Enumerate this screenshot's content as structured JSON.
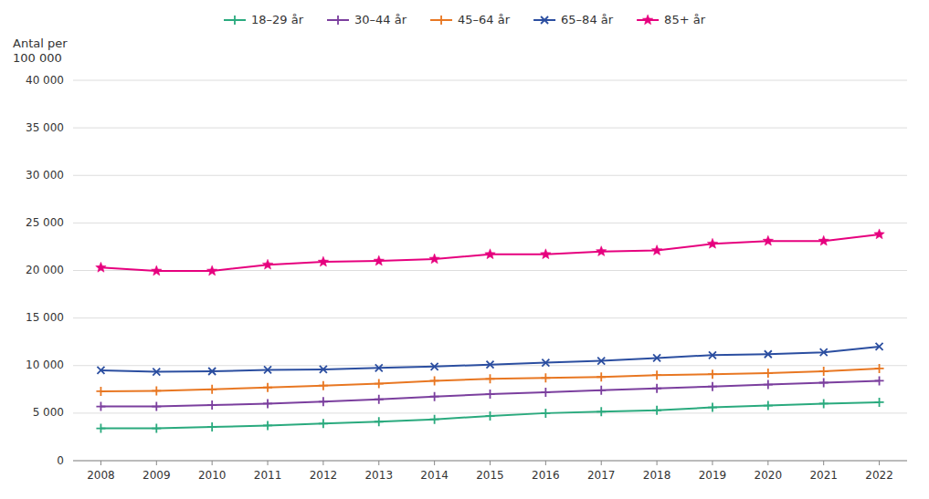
{
  "chart_data": {
    "type": "line",
    "y_label": "Antal per\n100 000",
    "x": [
      2008,
      2009,
      2010,
      2011,
      2012,
      2013,
      2014,
      2015,
      2016,
      2017,
      2018,
      2019,
      2020,
      2021,
      2022
    ],
    "xlim": [
      2007.5,
      2022.5
    ],
    "xticks": [
      2008,
      2009,
      2010,
      2011,
      2012,
      2013,
      2014,
      2015,
      2016,
      2017,
      2018,
      2019,
      2020,
      2021,
      2022
    ],
    "ylim": [
      0,
      40000
    ],
    "yticks": [
      0,
      {
        "value": 5000,
        "label": "5 000"
      },
      {
        "value": 10000,
        "label": "10 000"
      },
      {
        "value": 15000,
        "label": "15 000"
      },
      {
        "value": 20000,
        "label": "20 000"
      },
      {
        "value": 25000,
        "label": "25 000"
      },
      {
        "value": 30000,
        "label": "30 000"
      },
      {
        "value": 35000,
        "label": "35 000"
      },
      {
        "value": 40000,
        "label": "40 000"
      }
    ],
    "grid": true,
    "legend": "top",
    "series": [
      {
        "name": "18–29 år",
        "color": "#2aaa7e",
        "marker": "plus",
        "values": [
          3400,
          3400,
          3550,
          3700,
          3900,
          4100,
          4350,
          4700,
          5000,
          5150,
          5300,
          5600,
          5800,
          6000,
          6150
        ]
      },
      {
        "name": "30–44 år",
        "color": "#7b3f9e",
        "marker": "plus",
        "values": [
          5700,
          5700,
          5850,
          6000,
          6200,
          6450,
          6750,
          7000,
          7200,
          7400,
          7600,
          7800,
          8000,
          8200,
          8400
        ]
      },
      {
        "name": "45–64 år",
        "color": "#e87722",
        "marker": "plus",
        "values": [
          7300,
          7350,
          7500,
          7700,
          7900,
          8100,
          8400,
          8600,
          8700,
          8800,
          9000,
          9100,
          9200,
          9400,
          9700
        ]
      },
      {
        "name": "65–84 år",
        "color": "#2b4ea0",
        "marker": "cross",
        "values": [
          9500,
          9350,
          9400,
          9550,
          9600,
          9750,
          9900,
          10100,
          10300,
          10500,
          10800,
          11100,
          11200,
          11400,
          12000
        ]
      },
      {
        "name": "85+ år",
        "color": "#e6007e",
        "marker": "star",
        "values": [
          20300,
          19950,
          19950,
          20600,
          20900,
          21000,
          21200,
          21700,
          21700,
          22000,
          22100,
          22800,
          23100,
          23100,
          23800
        ]
      }
    ]
  }
}
